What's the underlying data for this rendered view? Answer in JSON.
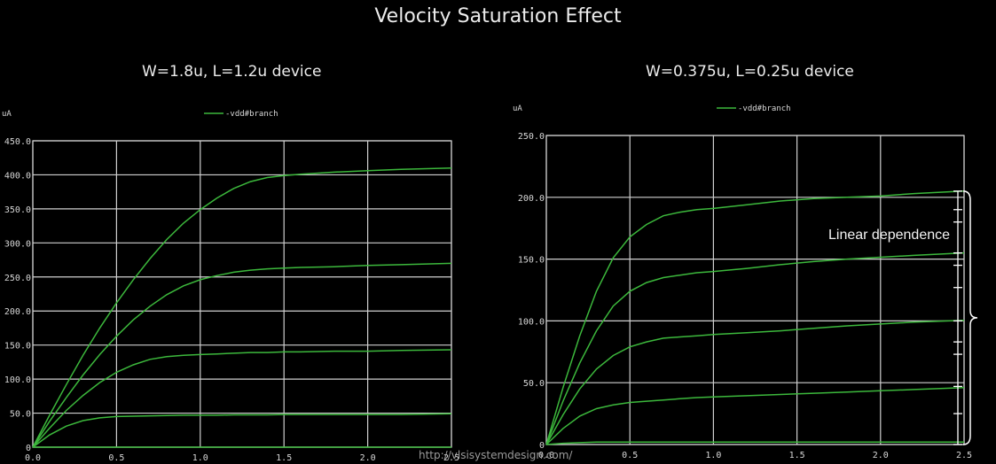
{
  "title": "Velocity Saturation Effect",
  "watermark": "http://vlsisystemdesign.com/",
  "annotation": "Linear dependence",
  "colors": {
    "background": "#000000",
    "grid": "#cfcfcf",
    "curve": "#3cb83c",
    "text": "#d8d8d8",
    "bracket": "#ffffff"
  },
  "chart_data": [
    {
      "type": "line",
      "title": "W=1.8u, L=1.2u device",
      "unit_label": "uA",
      "legend": "-vdd#branch",
      "legend_position": "top-center",
      "grid": true,
      "xlim": [
        0,
        2.5
      ],
      "ylim": [
        0,
        450
      ],
      "x_ticks": [
        "0.0",
        "0.5",
        "1.0",
        "1.5",
        "2.0",
        "2.5"
      ],
      "y_ticks": [
        "0",
        "50.0",
        "100.0",
        "150.0",
        "200.0",
        "250.0",
        "300.0",
        "350.0",
        "400.0",
        "450.0"
      ],
      "x": [
        0,
        0.1,
        0.2,
        0.3,
        0.4,
        0.5,
        0.6,
        0.7,
        0.8,
        0.9,
        1.0,
        1.1,
        1.2,
        1.3,
        1.4,
        1.5,
        1.6,
        1.8,
        2.0,
        2.2,
        2.5
      ],
      "series": [
        {
          "values": [
            0,
            0,
            0,
            0,
            0,
            0,
            0,
            0,
            0,
            0,
            0,
            0,
            0,
            0,
            0,
            0,
            0,
            0,
            0,
            0,
            0
          ]
        },
        {
          "values": [
            0,
            18,
            31,
            39,
            43,
            45,
            45.5,
            46,
            46.5,
            47,
            47,
            47,
            47.5,
            47.5,
            47.5,
            48,
            48,
            48,
            48,
            48,
            49
          ]
        },
        {
          "values": [
            0,
            28,
            54,
            76,
            95,
            110,
            121,
            129,
            133,
            135,
            136,
            137,
            138,
            139,
            139,
            140,
            140,
            141,
            141,
            142,
            143
          ]
        },
        {
          "values": [
            0,
            38,
            73,
            106,
            136,
            163,
            187,
            207,
            224,
            237,
            246,
            252,
            257,
            260,
            262,
            263,
            264,
            265,
            267,
            268,
            270
          ]
        },
        {
          "values": [
            0,
            47,
            92,
            135,
            175,
            212,
            246,
            277,
            305,
            329,
            349,
            366,
            380,
            390,
            396,
            399,
            401,
            404,
            406,
            408,
            410
          ]
        }
      ]
    },
    {
      "type": "line",
      "title": "W=0.375u, L=0.25u device",
      "unit_label": "uA",
      "legend": "-vdd#branch",
      "legend_position": "top-center",
      "grid": true,
      "xlim": [
        0,
        2.5
      ],
      "ylim": [
        0,
        250
      ],
      "x_ticks": [
        "0.0",
        "0.5",
        "1.0",
        "1.5",
        "2.0",
        "2.5"
      ],
      "y_ticks": [
        "0",
        "50.0",
        "100.0",
        "150.0",
        "200.0",
        "250.0"
      ],
      "x": [
        0,
        0.1,
        0.2,
        0.3,
        0.4,
        0.5,
        0.6,
        0.7,
        0.8,
        0.9,
        1.0,
        1.2,
        1.4,
        1.6,
        1.8,
        2.0,
        2.2,
        2.5
      ],
      "series": [
        {
          "values": [
            0,
            1,
            1.5,
            2,
            2,
            2,
            2,
            2,
            2,
            2,
            2,
            2,
            2,
            2,
            2,
            2,
            2,
            2
          ]
        },
        {
          "values": [
            0,
            13,
            23,
            29,
            32,
            34,
            35,
            36,
            37,
            38,
            38.5,
            39.5,
            40.5,
            41.5,
            42.5,
            43.5,
            44.5,
            46
          ]
        },
        {
          "values": [
            0,
            24,
            45,
            61,
            72,
            79,
            83,
            86,
            87,
            88,
            89,
            90.5,
            92,
            94,
            96,
            97.5,
            99,
            100.5
          ]
        },
        {
          "values": [
            0,
            35,
            66,
            92,
            112,
            124,
            131,
            135,
            137,
            139,
            140,
            142.5,
            145.5,
            148,
            150,
            151.5,
            153,
            155
          ]
        },
        {
          "values": [
            0,
            46,
            88,
            124,
            151,
            168,
            178,
            185,
            188,
            190,
            191,
            194,
            197,
            199,
            200,
            201,
            203,
            205
          ]
        }
      ]
    }
  ]
}
